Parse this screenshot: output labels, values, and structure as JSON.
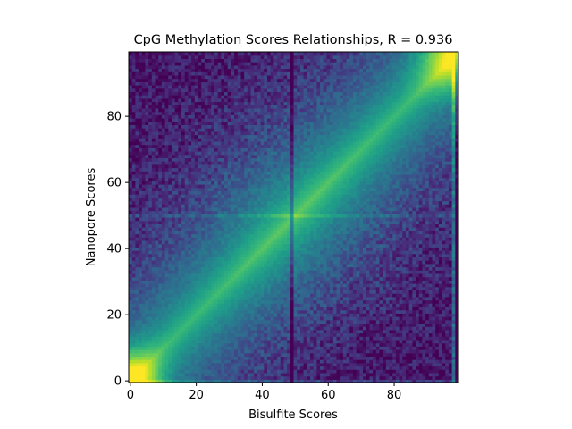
{
  "chart_data": {
    "type": "heatmap",
    "title": "CpG Methylation Scores Relationships, R =  0.936",
    "xlabel": "Bisulfite Scores",
    "ylabel": "Nanopore Scores",
    "xlim": [
      0,
      100
    ],
    "ylim": [
      0,
      100
    ],
    "xticks": [
      0,
      20,
      40,
      60,
      80
    ],
    "yticks": [
      0,
      20,
      40,
      60,
      80
    ],
    "xtick_labels": [
      "0",
      "20",
      "40",
      "60",
      "80"
    ],
    "ytick_labels": [
      "0",
      "20",
      "40",
      "60",
      "80"
    ],
    "bins": 100,
    "colormap": "viridis",
    "correlation_r": 0.936,
    "grid": false,
    "legend": "none",
    "notable_features": {
      "dark_vertical_band_x": 49,
      "light_horizontal_band_y": 50,
      "bright_peaks": [
        [
          0,
          0
        ],
        [
          100,
          100
        ]
      ]
    }
  }
}
